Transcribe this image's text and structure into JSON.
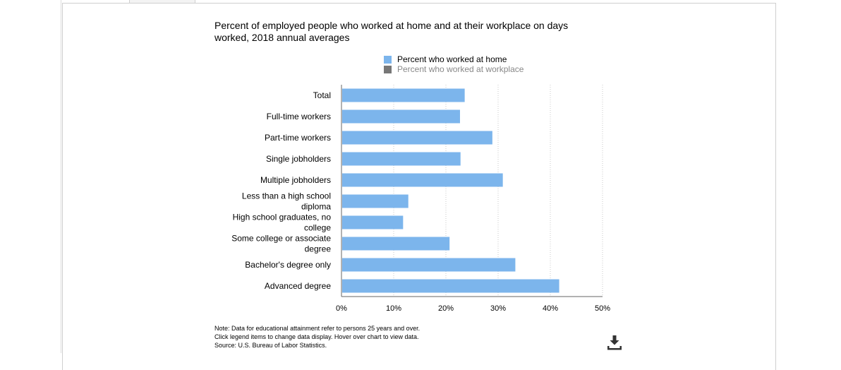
{
  "page": {
    "title": "Percent of employed people who worked at home and at their workplace on days worked, 2018 annual averages",
    "notes": [
      "Note: Data for educational attainment refer to persons 25 years and over.",
      "Click legend items to change data display. Hover over chart to view data.",
      "Source: U.S. Bureau of Labor Statistics."
    ],
    "download_icon": "download-icon"
  },
  "legend": [
    {
      "label": "Percent who worked at home",
      "color": "#7cb5ec",
      "active": true
    },
    {
      "label": "Percent who worked at workplace",
      "color": "#777777",
      "active": false,
      "text_color": "#888888"
    }
  ],
  "chart_data": {
    "type": "bar",
    "orientation": "horizontal",
    "title": "Percent of employed people who worked at home and at their workplace on days worked, 2018 annual averages",
    "categories": [
      [
        "Total"
      ],
      [
        "Full-time workers"
      ],
      [
        "Part-time workers"
      ],
      [
        "Single jobholders"
      ],
      [
        "Multiple jobholders"
      ],
      [
        "Less than a high school",
        "diploma"
      ],
      [
        "High school graduates, no",
        "college"
      ],
      [
        "Some college or associate",
        "degree"
      ],
      [
        "Bachelor's degree only"
      ],
      [
        "Advanced degree"
      ]
    ],
    "series": [
      {
        "name": "Percent who worked at home",
        "color": "#7cb5ec",
        "values": [
          23.6,
          22.7,
          28.9,
          22.8,
          30.9,
          12.8,
          11.8,
          20.7,
          33.3,
          41.7
        ]
      }
    ],
    "xlim": [
      0,
      50
    ],
    "ticks": [
      0,
      10,
      20,
      30,
      40,
      50
    ],
    "tick_labels": [
      "0%",
      "10%",
      "20%",
      "30%",
      "40%",
      "50%"
    ],
    "grid": true
  }
}
